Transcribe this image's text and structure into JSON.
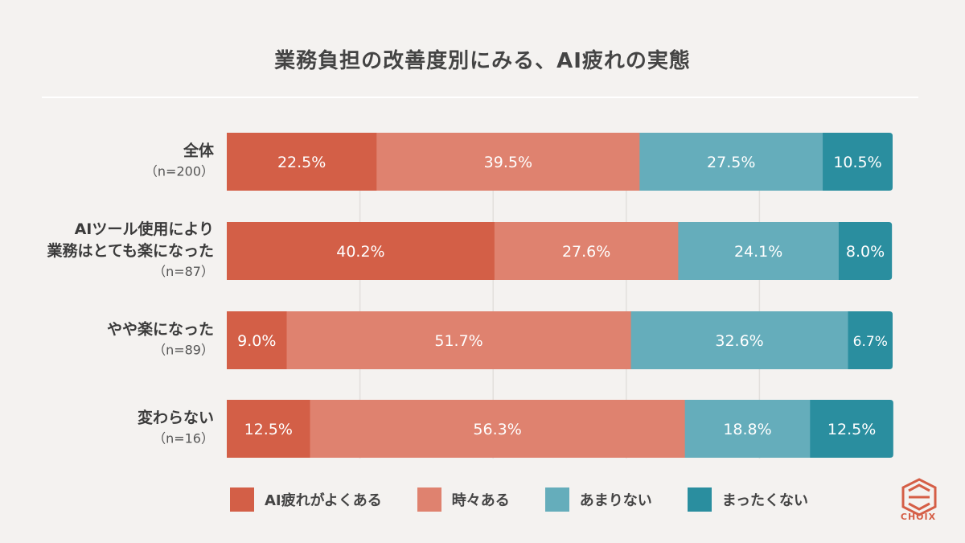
{
  "title": "業務負担の改善度別にみる、AI疲れの実態",
  "chart_data": {
    "type": "bar",
    "orientation": "horizontal",
    "stacked": true,
    "categories": [
      {
        "label": "全体",
        "n": "（n=200）"
      },
      {
        "label": "AIツール使用により\n業務はとても楽になった",
        "n": "（n=87）"
      },
      {
        "label": "やや楽になった",
        "n": "（n=89）"
      },
      {
        "label": "変わらない",
        "n": "（n=16）"
      }
    ],
    "series": [
      {
        "name": "AI疲れがよくある",
        "color": "#d35f47",
        "values": [
          22.5,
          40.2,
          9.0,
          12.5
        ],
        "labels": [
          "22.5%",
          "40.2%",
          "9.0%",
          "12.5%"
        ]
      },
      {
        "name": "時々ある",
        "color": "#df826f",
        "values": [
          39.5,
          27.6,
          51.7,
          56.3
        ],
        "labels": [
          "39.5%",
          "27.6%",
          "51.7%",
          "56.3%"
        ]
      },
      {
        "name": "あまりない",
        "color": "#65adbb",
        "values": [
          27.5,
          24.1,
          32.6,
          18.8
        ],
        "labels": [
          "27.5%",
          "24.1%",
          "32.6%",
          "18.8%"
        ]
      },
      {
        "name": "まったくない",
        "color": "#2a8e9f",
        "values": [
          10.5,
          8.0,
          6.7,
          12.5
        ],
        "labels": [
          "10.5%",
          "8.0%",
          "6.7%",
          "12.5%"
        ]
      }
    ],
    "xlim": [
      0,
      100
    ],
    "grid": true,
    "legend_position": "bottom"
  },
  "logo": {
    "text": "CHOIX",
    "color": "#d55e46"
  }
}
